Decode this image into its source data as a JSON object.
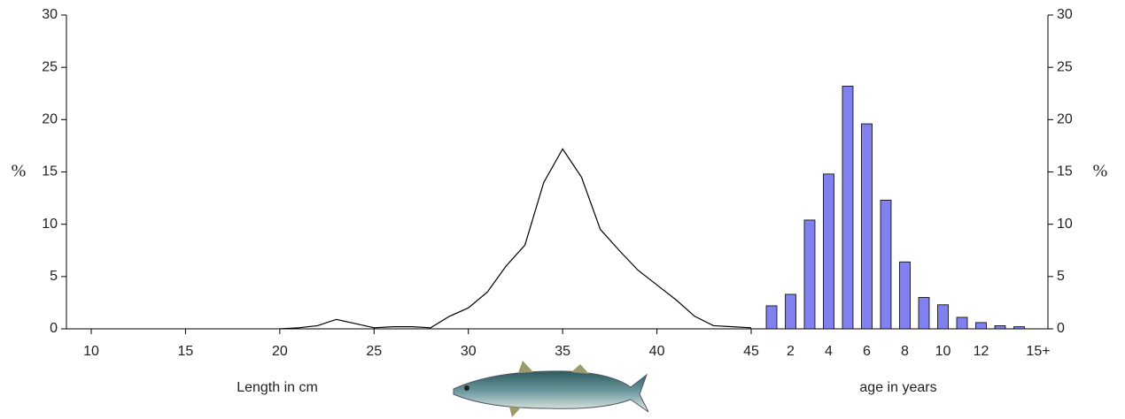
{
  "chart_data": [
    {
      "type": "line",
      "ylabel": "%",
      "xlabel": "Length in cm",
      "color": "#000000",
      "x": [
        20,
        21,
        22,
        23,
        24,
        25,
        26,
        27,
        28,
        29,
        30,
        31,
        32,
        33,
        34,
        35,
        36,
        37,
        38,
        39,
        40,
        41,
        42,
        43,
        44,
        45
      ],
      "values": [
        0,
        0.1,
        0.3,
        0.9,
        0.5,
        0.1,
        0.2,
        0.2,
        0.1,
        1.2,
        2,
        3.5,
        6,
        8,
        14,
        17.2,
        14.5,
        9.5,
        7.5,
        5.6,
        4.2,
        2.8,
        1.2,
        0.3,
        0.2,
        0.1
      ],
      "xlim": [
        10,
        45
      ],
      "xticks": [
        10,
        15,
        20,
        25,
        30,
        35,
        40,
        45
      ],
      "ylim": [
        0,
        30
      ],
      "yticks": [
        0,
        5,
        10,
        15,
        20,
        25,
        30
      ]
    },
    {
      "type": "bar",
      "y2label": "%",
      "xlabel": "age in years",
      "color": "#8080ee",
      "categories": [
        null,
        "2",
        null,
        "4",
        null,
        "6",
        null,
        "8",
        null,
        "10",
        null,
        "12",
        null,
        null,
        "15+"
      ],
      "values": [
        2.2,
        3.3,
        10.4,
        14.8,
        23.2,
        19.6,
        12.3,
        6.4,
        3.0,
        2.3,
        1.1,
        0.6,
        0.3,
        0.2,
        0
      ],
      "y2lim": [
        0,
        30
      ],
      "y2ticks": [
        0,
        5,
        10,
        15,
        20,
        25,
        30
      ]
    }
  ]
}
